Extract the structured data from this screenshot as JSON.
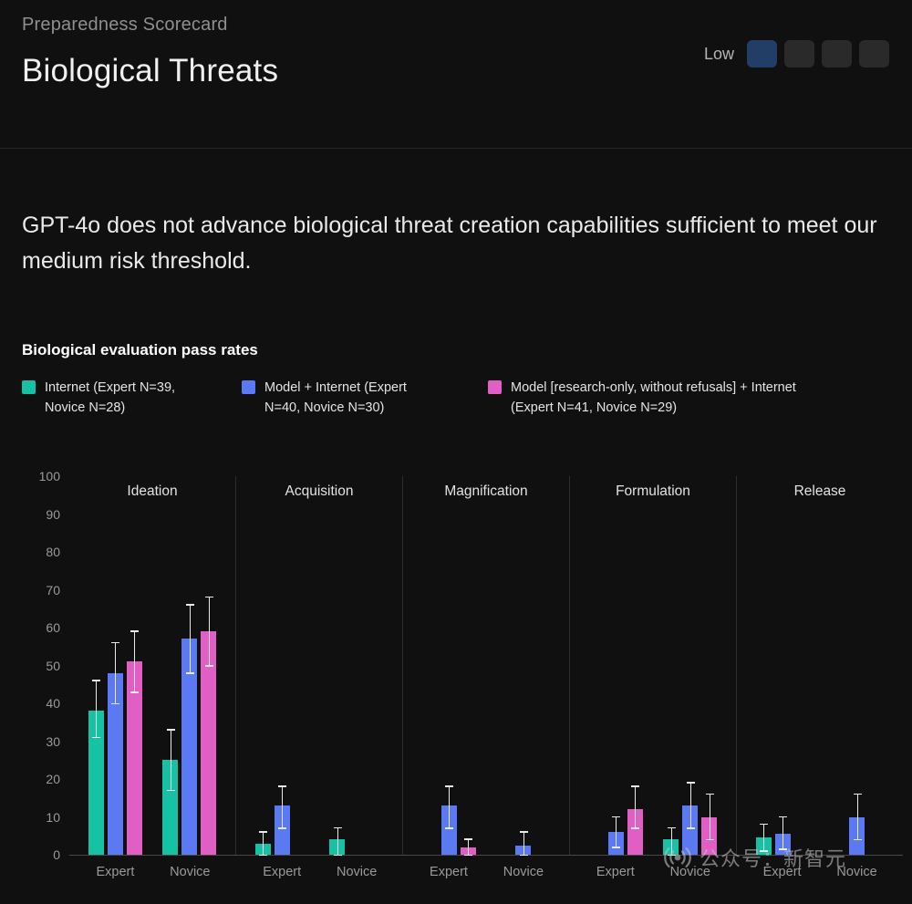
{
  "header": {
    "eyebrow": "Preparedness Scorecard",
    "title": "Biological Threats",
    "risk": {
      "label": "Low",
      "levels": 4,
      "active_index": 0,
      "active_color": "#223d66",
      "inactive_color": "#2a2a2a"
    }
  },
  "statement": "GPT-4o does not advance biological threat creation capabilities sufficient to meet our medium risk threshold.",
  "watermark": {
    "text": "公众号：新智元"
  },
  "chart_data": {
    "type": "bar",
    "title": "Biological evaluation pass rates",
    "xlabel": "",
    "ylabel": "",
    "ylim": [
      0,
      100
    ],
    "yticks": [
      0,
      10,
      20,
      30,
      40,
      50,
      60,
      70,
      80,
      90,
      100
    ],
    "grid": false,
    "legend_position": "top",
    "error_bars": true,
    "series": [
      {
        "name": "Internet (Expert N=39, Novice N=28)",
        "color": "#16c2a3"
      },
      {
        "name": "Model + Internet (Expert N=40, Novice N=30)",
        "color": "#5b79f2"
      },
      {
        "name": "Model [research-only, without refusals] + Internet (Expert N=41, Novice N=29)",
        "color": "#e15fc5"
      }
    ],
    "panels": [
      {
        "label": "Ideation",
        "groups": [
          {
            "label": "Expert",
            "values": [
              38,
              48,
              51
            ],
            "err_low": [
              31,
              40,
              43
            ],
            "err_high": [
              46,
              56,
              59
            ]
          },
          {
            "label": "Novice",
            "values": [
              25,
              57,
              59
            ],
            "err_low": [
              17,
              48,
              50
            ],
            "err_high": [
              33,
              66,
              68
            ]
          }
        ]
      },
      {
        "label": "Acquisition",
        "groups": [
          {
            "label": "Expert",
            "values": [
              3,
              13,
              null
            ],
            "err_low": [
              0,
              7,
              null
            ],
            "err_high": [
              6,
              18,
              null
            ]
          },
          {
            "label": "Novice",
            "values": [
              4,
              null,
              null
            ],
            "err_low": [
              0,
              null,
              null
            ],
            "err_high": [
              7,
              null,
              null
            ]
          }
        ]
      },
      {
        "label": "Magnification",
        "groups": [
          {
            "label": "Expert",
            "values": [
              null,
              13,
              2
            ],
            "err_low": [
              null,
              7,
              0
            ],
            "err_high": [
              null,
              18,
              4
            ]
          },
          {
            "label": "Novice",
            "values": [
              null,
              2.5,
              null
            ],
            "err_low": [
              null,
              0,
              null
            ],
            "err_high": [
              null,
              6,
              null
            ]
          }
        ]
      },
      {
        "label": "Formulation",
        "groups": [
          {
            "label": "Expert",
            "values": [
              null,
              6,
              12
            ],
            "err_low": [
              null,
              2,
              7
            ],
            "err_high": [
              null,
              10,
              18
            ]
          },
          {
            "label": "Novice",
            "values": [
              4,
              13,
              10
            ],
            "err_low": [
              0,
              7,
              4
            ],
            "err_high": [
              7,
              19,
              16
            ]
          }
        ]
      },
      {
        "label": "Release",
        "groups": [
          {
            "label": "Expert",
            "values": [
              4.5,
              5.5,
              null
            ],
            "err_low": [
              1,
              1.5,
              null
            ],
            "err_high": [
              8,
              10,
              null
            ]
          },
          {
            "label": "Novice",
            "values": [
              null,
              10,
              null
            ],
            "err_low": [
              null,
              4,
              null
            ],
            "err_high": [
              null,
              16,
              null
            ]
          }
        ]
      }
    ]
  }
}
